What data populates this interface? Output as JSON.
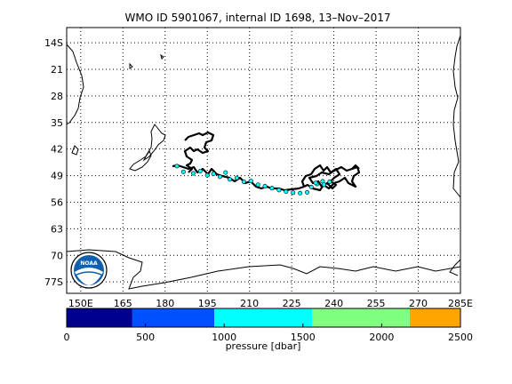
{
  "title": "WMO ID 5901067, internal ID 1698, 13–Nov–2017",
  "map": {
    "lon_ticks": [
      "150E",
      "165",
      "180",
      "195",
      "210",
      "225",
      "240",
      "255",
      "270",
      "285E"
    ],
    "lat_ticks": [
      "14S",
      "21",
      "28",
      "35",
      "42",
      "49",
      "56",
      "63",
      "70",
      "77S"
    ],
    "lon_range": [
      145,
      285
    ],
    "lat_range": [
      -10,
      -80
    ],
    "grid": true,
    "logo_text": "NOAA"
  },
  "colorbar": {
    "label": "pressure [dbar]",
    "ticks": [
      "0",
      "500",
      "1000",
      "1500",
      "2000",
      "2500"
    ],
    "range": [
      0,
      2500
    ],
    "segments": [
      {
        "from": 0,
        "to": 417,
        "color": "#00008f"
      },
      {
        "from": 417,
        "to": 937,
        "color": "#0050ff"
      },
      {
        "from": 937,
        "to": 1558,
        "color": "#00ffff"
      },
      {
        "from": 1558,
        "to": 2178,
        "color": "#80ff80"
      },
      {
        "from": 2178,
        "to": 2500,
        "color": "#ffa500"
      }
    ]
  },
  "colors": {
    "track": "#000000",
    "track_points": "#00e5e5",
    "coastline": "#000000",
    "grid": "#000000"
  },
  "chart_data": {
    "type": "scatter",
    "title": "WMO ID 5901067, internal ID 1698, 13–Nov–2017",
    "xlabel": "",
    "ylabel": "",
    "series": [
      {
        "values": [
          [
            184.2,
            -46.5
          ],
          [
            186.5,
            -48.0
          ],
          [
            190.0,
            -48.4
          ],
          [
            192.5,
            -47.8
          ],
          [
            195.0,
            -48.9
          ],
          [
            197.2,
            -48.5
          ],
          [
            199.5,
            -49.3
          ],
          [
            201.5,
            -48.2
          ],
          [
            203.0,
            -50.0
          ],
          [
            205.5,
            -49.6
          ],
          [
            208.0,
            -50.6
          ],
          [
            210.5,
            -50.4
          ],
          [
            213.0,
            -51.4
          ],
          [
            215.5,
            -51.8
          ],
          [
            218.0,
            -52.3
          ],
          [
            220.5,
            -52.8
          ],
          [
            223.0,
            -53.2
          ],
          [
            225.5,
            -53.5
          ],
          [
            228.0,
            -53.6
          ],
          [
            230.5,
            -53.4
          ],
          [
            232.0,
            -52.0
          ],
          [
            234.0,
            -51.2
          ],
          [
            236.0,
            -50.5
          ],
          [
            233.5,
            -50.9
          ],
          [
            236.5,
            -51.4
          ],
          [
            238.5,
            -50.6
          ]
        ],
        "pressure_dbar": [
          1100,
          1200,
          1100,
          1100,
          1200,
          1100,
          1200,
          1100,
          1200,
          1200,
          1100,
          1200,
          1100,
          1200,
          1100,
          1200,
          1200,
          1100,
          1200,
          1100,
          1100,
          1200,
          1100,
          1200,
          1100,
          1200
        ]
      }
    ],
    "lon_range": [
      145,
      285
    ],
    "lat_range": [
      -10,
      -80
    ],
    "grid": true
  }
}
